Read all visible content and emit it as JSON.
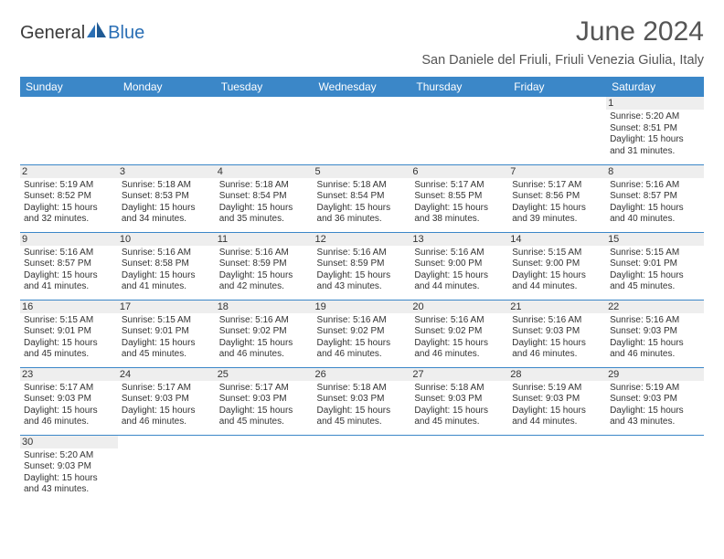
{
  "logo": {
    "word1": "General",
    "word2": "Blue"
  },
  "title": "June 2024",
  "subtitle": "San Daniele del Friuli, Friuli Venezia Giulia, Italy",
  "colors": {
    "header_bg": "#3b87c8",
    "header_text": "#ffffff",
    "row_border": "#3b87c8",
    "daynum_bg": "#eeeeee",
    "page_bg": "#ffffff",
    "text": "#333333"
  },
  "dow": [
    "Sunday",
    "Monday",
    "Tuesday",
    "Wednesday",
    "Thursday",
    "Friday",
    "Saturday"
  ],
  "weeks": [
    [
      null,
      null,
      null,
      null,
      null,
      null,
      {
        "n": "1",
        "sr": "5:20 AM",
        "ss": "8:51 PM",
        "dh": "15",
        "dm": "31"
      }
    ],
    [
      {
        "n": "2",
        "sr": "5:19 AM",
        "ss": "8:52 PM",
        "dh": "15",
        "dm": "32"
      },
      {
        "n": "3",
        "sr": "5:18 AM",
        "ss": "8:53 PM",
        "dh": "15",
        "dm": "34"
      },
      {
        "n": "4",
        "sr": "5:18 AM",
        "ss": "8:54 PM",
        "dh": "15",
        "dm": "35"
      },
      {
        "n": "5",
        "sr": "5:18 AM",
        "ss": "8:54 PM",
        "dh": "15",
        "dm": "36"
      },
      {
        "n": "6",
        "sr": "5:17 AM",
        "ss": "8:55 PM",
        "dh": "15",
        "dm": "38"
      },
      {
        "n": "7",
        "sr": "5:17 AM",
        "ss": "8:56 PM",
        "dh": "15",
        "dm": "39"
      },
      {
        "n": "8",
        "sr": "5:16 AM",
        "ss": "8:57 PM",
        "dh": "15",
        "dm": "40"
      }
    ],
    [
      {
        "n": "9",
        "sr": "5:16 AM",
        "ss": "8:57 PM",
        "dh": "15",
        "dm": "41"
      },
      {
        "n": "10",
        "sr": "5:16 AM",
        "ss": "8:58 PM",
        "dh": "15",
        "dm": "41"
      },
      {
        "n": "11",
        "sr": "5:16 AM",
        "ss": "8:59 PM",
        "dh": "15",
        "dm": "42"
      },
      {
        "n": "12",
        "sr": "5:16 AM",
        "ss": "8:59 PM",
        "dh": "15",
        "dm": "43"
      },
      {
        "n": "13",
        "sr": "5:16 AM",
        "ss": "9:00 PM",
        "dh": "15",
        "dm": "44"
      },
      {
        "n": "14",
        "sr": "5:15 AM",
        "ss": "9:00 PM",
        "dh": "15",
        "dm": "44"
      },
      {
        "n": "15",
        "sr": "5:15 AM",
        "ss": "9:01 PM",
        "dh": "15",
        "dm": "45"
      }
    ],
    [
      {
        "n": "16",
        "sr": "5:15 AM",
        "ss": "9:01 PM",
        "dh": "15",
        "dm": "45"
      },
      {
        "n": "17",
        "sr": "5:15 AM",
        "ss": "9:01 PM",
        "dh": "15",
        "dm": "45"
      },
      {
        "n": "18",
        "sr": "5:16 AM",
        "ss": "9:02 PM",
        "dh": "15",
        "dm": "46"
      },
      {
        "n": "19",
        "sr": "5:16 AM",
        "ss": "9:02 PM",
        "dh": "15",
        "dm": "46"
      },
      {
        "n": "20",
        "sr": "5:16 AM",
        "ss": "9:02 PM",
        "dh": "15",
        "dm": "46"
      },
      {
        "n": "21",
        "sr": "5:16 AM",
        "ss": "9:03 PM",
        "dh": "15",
        "dm": "46"
      },
      {
        "n": "22",
        "sr": "5:16 AM",
        "ss": "9:03 PM",
        "dh": "15",
        "dm": "46"
      }
    ],
    [
      {
        "n": "23",
        "sr": "5:17 AM",
        "ss": "9:03 PM",
        "dh": "15",
        "dm": "46"
      },
      {
        "n": "24",
        "sr": "5:17 AM",
        "ss": "9:03 PM",
        "dh": "15",
        "dm": "46"
      },
      {
        "n": "25",
        "sr": "5:17 AM",
        "ss": "9:03 PM",
        "dh": "15",
        "dm": "45"
      },
      {
        "n": "26",
        "sr": "5:18 AM",
        "ss": "9:03 PM",
        "dh": "15",
        "dm": "45"
      },
      {
        "n": "27",
        "sr": "5:18 AM",
        "ss": "9:03 PM",
        "dh": "15",
        "dm": "45"
      },
      {
        "n": "28",
        "sr": "5:19 AM",
        "ss": "9:03 PM",
        "dh": "15",
        "dm": "44"
      },
      {
        "n": "29",
        "sr": "5:19 AM",
        "ss": "9:03 PM",
        "dh": "15",
        "dm": "43"
      }
    ],
    [
      {
        "n": "30",
        "sr": "5:20 AM",
        "ss": "9:03 PM",
        "dh": "15",
        "dm": "43"
      },
      null,
      null,
      null,
      null,
      null,
      null
    ]
  ]
}
